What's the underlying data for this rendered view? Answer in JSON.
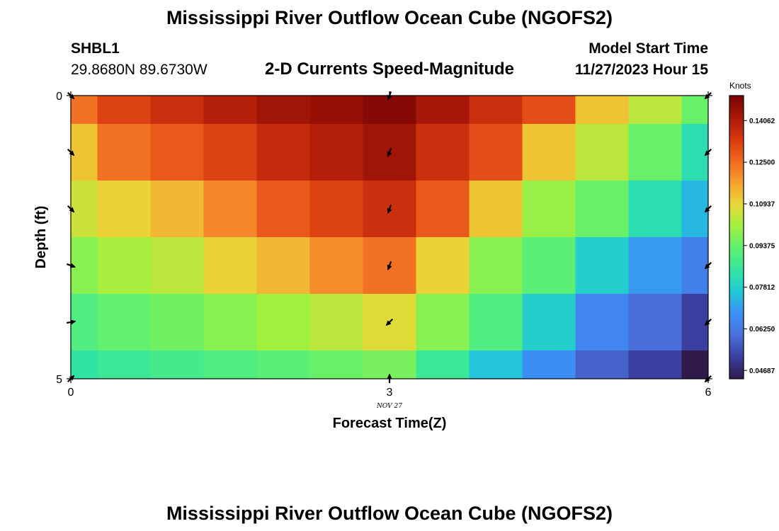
{
  "header": {
    "title": "Mississippi River Outflow Ocean Cube (NGOFS2)",
    "station_id": "SHBL1",
    "coordinates": "29.8680N  89.6730W",
    "subtitle": "2-D Currents Speed-Magnitude",
    "model_start_label": "Model Start Time",
    "model_start_value": "11/27/2023 Hour 15"
  },
  "footer": {
    "title": "Mississippi River Outflow Ocean Cube (NGOFS2)"
  },
  "chart_data": {
    "type": "heatmap",
    "xlabel": "Forecast Time(Z)",
    "ylabel": "Depth (ft)",
    "date_label": "NOV 27",
    "x_ticks": [
      0,
      3,
      6
    ],
    "x_tick_labels": [
      "0",
      "3",
      "6"
    ],
    "y_ticks": [
      0,
      5
    ],
    "y_tick_labels": [
      "0",
      "5"
    ],
    "xlim": [
      0,
      6
    ],
    "ylim": [
      0,
      5
    ],
    "colorbar": {
      "title": "Knots",
      "range": [
        0.04375,
        0.15
      ],
      "tick_values": [
        0.04687,
        0.0625,
        0.07812,
        0.09375,
        0.10937,
        0.125,
        0.14062
      ],
      "tick_labels": [
        "0.04687",
        "0.06250",
        "0.07812",
        "0.09375",
        "0.10937",
        "0.12500",
        "0.14062"
      ],
      "colors": [
        "#2f1a4a",
        "#3b3f9e",
        "#4a70dc",
        "#3c8ff5",
        "#20c8d8",
        "#34e6a0",
        "#60f070",
        "#a0f040",
        "#e8d838",
        "#f8a030",
        "#f06820",
        "#d83810",
        "#a81808",
        "#7a0404"
      ]
    },
    "depth_rows": [
      0,
      1,
      2,
      3,
      4,
      5
    ],
    "time_cols": [
      0,
      0.5,
      1,
      1.5,
      2,
      2.5,
      3,
      3.5,
      4,
      4.5,
      5,
      5.5,
      6
    ],
    "values": [
      [
        0.124,
        0.132,
        0.136,
        0.14,
        0.143,
        0.145,
        0.148,
        0.142,
        0.136,
        0.13,
        0.112,
        0.104,
        0.094
      ],
      [
        0.112,
        0.124,
        0.128,
        0.132,
        0.137,
        0.14,
        0.143,
        0.136,
        0.13,
        0.112,
        0.104,
        0.094,
        0.082
      ],
      [
        0.106,
        0.11,
        0.114,
        0.121,
        0.128,
        0.132,
        0.136,
        0.128,
        0.112,
        0.1,
        0.094,
        0.082,
        0.074
      ],
      [
        0.098,
        0.102,
        0.104,
        0.11,
        0.114,
        0.12,
        0.124,
        0.11,
        0.098,
        0.092,
        0.078,
        0.07,
        0.064
      ],
      [
        0.09,
        0.093,
        0.095,
        0.098,
        0.101,
        0.104,
        0.108,
        0.098,
        0.09,
        0.078,
        0.066,
        0.06,
        0.052
      ],
      [
        0.084,
        0.086,
        0.088,
        0.09,
        0.092,
        0.094,
        0.096,
        0.086,
        0.076,
        0.068,
        0.058,
        0.052,
        0.04
      ]
    ],
    "vectors": {
      "times": [
        0,
        3,
        6
      ],
      "depths": [
        0,
        1,
        2,
        3,
        4,
        5
      ],
      "direction_deg": [
        [
          135,
          200,
          225
        ],
        [
          135,
          200,
          225
        ],
        [
          135,
          200,
          225
        ],
        [
          110,
          200,
          225
        ],
        [
          80,
          225,
          225
        ],
        [
          45,
          0,
          225
        ]
      ]
    }
  }
}
